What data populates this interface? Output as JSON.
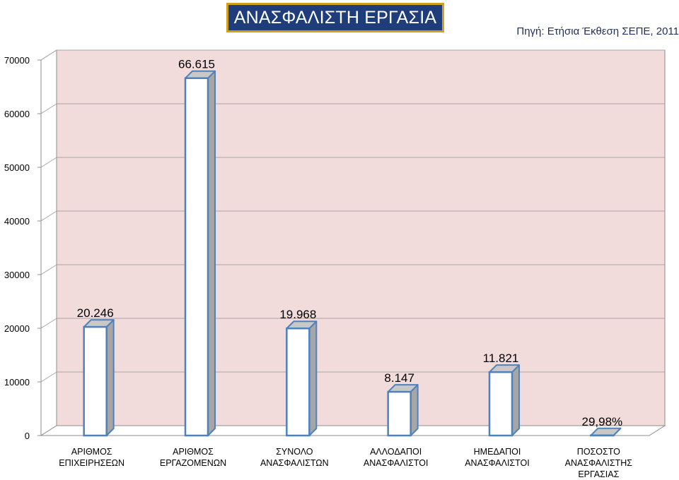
{
  "header": {
    "title": "ΑΝΑΣΦΑΛΙΣΤΗ ΕΡΓΑΣΙΑ",
    "source": "Πηγή: Ετήσια Έκθεση ΣΕΠΕ, 2011"
  },
  "colors": {
    "title_bg": "#1f3d7a",
    "title_border": "#d4a017",
    "plot_bg": "#f2dcdb",
    "bar_front": "#ffffff",
    "bar_side": "#a6a6a6",
    "bar_stroke": "#4f81bd"
  },
  "chart_data": {
    "type": "bar",
    "three_d": true,
    "categories": [
      [
        "ΑΡΙΘΜΟΣ",
        "ΕΠΙΧΕΙΡΗΣΕΩΝ"
      ],
      [
        "ΑΡΙΘΜΟΣ",
        "ΕΡΓΑΖΟΜΕΝΩΝ"
      ],
      [
        "ΣΥΝΟΛΟ",
        "ΑΝΑΣΦΑΛΙΣΤΩΝ"
      ],
      [
        "ΑΛΛΟΔΑΠΟΙ",
        "ΑΝΑΣΦΑΛΙΣΤΟΙ"
      ],
      [
        "ΗΜΕΔΑΠΟΙ",
        "ΑΝΑΣΦΑΛΙΣΤΟΙ"
      ],
      [
        "ΠΟΣΟΣΤΟ",
        "ΑΝΑΣΦΑΛΙΣΤΗΣ",
        "ΕΡΓΑΣΙΑΣ"
      ]
    ],
    "values": [
      20246,
      66615,
      19968,
      8147,
      11821,
      29.98
    ],
    "data_labels": [
      "20.246",
      "66.615",
      "19.968",
      "8.147",
      "11.821",
      "29,98%"
    ],
    "ylim": [
      0,
      70000
    ],
    "yticks": [
      0,
      10000,
      20000,
      30000,
      40000,
      50000,
      60000,
      70000
    ],
    "ytick_labels": [
      "0",
      "10000",
      "20000",
      "30000",
      "40000",
      "50000",
      "60000",
      "70000"
    ],
    "grid": true,
    "legend": false
  }
}
